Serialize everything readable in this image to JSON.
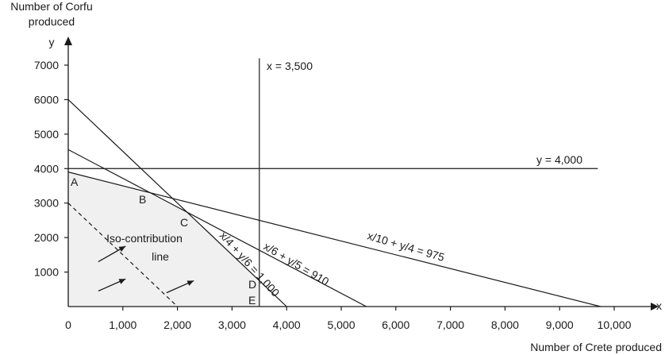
{
  "chart_data": {
    "type": "line",
    "x_axis": {
      "letter": "x",
      "title": "Number of Crete produced",
      "range": [
        0,
        10000
      ],
      "ticks": [
        {
          "value": 0,
          "label": "0"
        },
        {
          "value": 1000,
          "label": "1,000"
        },
        {
          "value": 2000,
          "label": "2,000"
        },
        {
          "value": 3000,
          "label": "3,000"
        },
        {
          "value": 4000,
          "label": "4,000"
        },
        {
          "value": 5000,
          "label": "5,000"
        },
        {
          "value": 6000,
          "label": "6,000"
        },
        {
          "value": 7000,
          "label": "7,000"
        },
        {
          "value": 8000,
          "label": "8,000"
        },
        {
          "value": 9000,
          "label": "9,000"
        },
        {
          "value": 10000,
          "label": "10,000"
        }
      ]
    },
    "y_axis": {
      "letter": "y",
      "title_line1": "Number of Corfu",
      "title_line2": "produced",
      "range": [
        0,
        7000
      ],
      "ticks": [
        {
          "value": 1000,
          "label": "1000"
        },
        {
          "value": 2000,
          "label": "2000"
        },
        {
          "value": 3000,
          "label": "3000"
        },
        {
          "value": 4000,
          "label": "4000"
        },
        {
          "value": 5000,
          "label": "5000"
        },
        {
          "value": 6000,
          "label": "6000"
        },
        {
          "value": 7000,
          "label": "7000"
        }
      ]
    },
    "constraints": [
      {
        "label": "x = 3,500",
        "points": [
          [
            3500,
            0
          ],
          [
            3500,
            7200
          ]
        ]
      },
      {
        "label": "y = 4,000",
        "points": [
          [
            0,
            4000
          ],
          [
            9700,
            4000
          ]
        ]
      },
      {
        "label": "x/10 + y/4 = 975",
        "points": [
          [
            0,
            3900
          ],
          [
            9750,
            0
          ]
        ]
      },
      {
        "label": "x/6 + y/5 = 910",
        "points": [
          [
            0,
            4550
          ],
          [
            5460,
            0
          ]
        ]
      },
      {
        "label": "x/4 + y/6 = 1,000",
        "points": [
          [
            0,
            6000
          ],
          [
            4000,
            0
          ]
        ]
      }
    ],
    "feasible_region": [
      [
        0,
        0
      ],
      [
        0,
        3900
      ],
      [
        1375,
        3350
      ],
      [
        2200,
        2700
      ],
      [
        3500,
        750
      ],
      [
        3500,
        0
      ]
    ],
    "iso_contribution": {
      "label_line1": "Iso-contribution",
      "label_line2": "line",
      "points": [
        [
          0,
          3000
        ],
        [
          2000,
          0
        ]
      ],
      "style": "dashed"
    },
    "arrows": [
      {
        "from": [
          550,
          1300
        ],
        "to": [
          1050,
          1750
        ]
      },
      {
        "from": [
          550,
          450
        ],
        "to": [
          1050,
          800
        ]
      },
      {
        "from": [
          1800,
          400
        ],
        "to": [
          2300,
          750
        ]
      }
    ],
    "points": [
      {
        "name": "A",
        "x": 0,
        "y": 3900
      },
      {
        "name": "B",
        "x": 1375,
        "y": 3350
      },
      {
        "name": "C",
        "x": 2200,
        "y": 2700
      },
      {
        "name": "D",
        "x": 3500,
        "y": 750
      },
      {
        "name": "E",
        "x": 3500,
        "y": 0
      }
    ]
  }
}
